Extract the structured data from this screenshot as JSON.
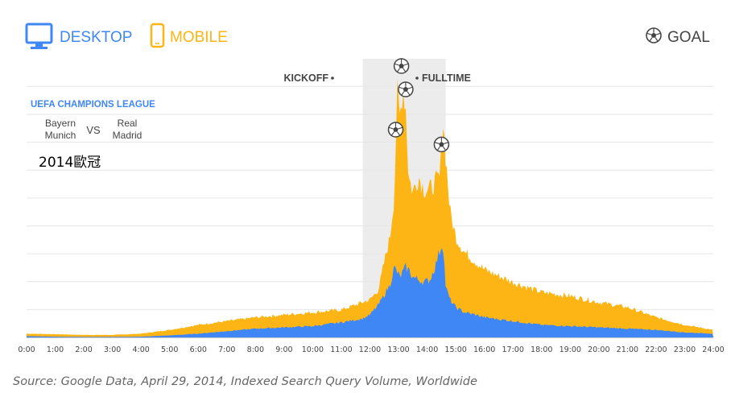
{
  "legend": {
    "desktop_label": "DESKTOP",
    "mobile_label": "MOBILE",
    "goal_label": "GOAL",
    "desktop_icon": "monitor-icon",
    "mobile_icon": "phone-icon",
    "goal_icon": "soccer-ball-icon"
  },
  "colors": {
    "desktop": "#3f87f5",
    "mobile": "#fdb515",
    "match_band": "#ececec",
    "grid": "#e6e6e6",
    "league": "#3f87f5"
  },
  "annotations": {
    "kickoff": "KICKOFF",
    "fulltime": "FULLTIME",
    "league": "UEFA CHAMPIONS LEAGUE",
    "team_home_line1": "Bayern",
    "team_home_line2": "Munich",
    "vs": "VS",
    "team_away_line1": "Real",
    "team_away_line2": "Madrid",
    "overlay_text": "2014歐冠"
  },
  "source": "Source: Google Data, April 29, 2014, Indexed Search Query Volume, Worldwide",
  "chart_data": {
    "type": "area",
    "x_ticks": [
      "0:00",
      "1:00",
      "2:00",
      "3:00",
      "4:00",
      "5:00",
      "6:00",
      "7:00",
      "8:00",
      "9:00",
      "10:00",
      "11:00",
      "12:00",
      "13:00",
      "14:00",
      "15:00",
      "16:00",
      "17:00",
      "18:00",
      "19:00",
      "20:00",
      "21:00",
      "22:00",
      "23:00",
      "24:00"
    ],
    "xlim": [
      0,
      24
    ],
    "ylim": [
      0,
      100
    ],
    "grid": true,
    "match_window": [
      11.75,
      14.65
    ],
    "goal_times": [
      12.9,
      13.1,
      13.25,
      14.5
    ],
    "series": [
      {
        "name": "MOBILE",
        "x": [
          0,
          1,
          2,
          3,
          4,
          5,
          6,
          7,
          8,
          9,
          10,
          11,
          11.5,
          11.75,
          12,
          12.3,
          12.5,
          12.7,
          12.85,
          12.95,
          13.05,
          13.15,
          13.25,
          13.35,
          13.5,
          13.7,
          13.9,
          14.1,
          14.3,
          14.45,
          14.55,
          14.65,
          14.8,
          15,
          15.3,
          15.7,
          16,
          17,
          18,
          19,
          20,
          21,
          22,
          23,
          24
        ],
        "values": [
          1.5,
          1.3,
          1,
          1,
          1.5,
          3,
          5,
          6.5,
          8,
          9,
          10,
          11,
          13,
          14,
          15,
          19,
          30,
          40,
          56,
          97,
          87,
          100,
          92,
          64,
          58,
          64,
          59,
          59,
          62,
          64,
          87,
          72,
          50,
          40,
          34,
          30,
          27,
          22,
          18,
          16.5,
          14,
          12,
          8,
          5,
          3
        ]
      },
      {
        "name": "DESKTOP",
        "x": [
          0,
          1,
          2,
          3,
          4,
          5,
          6,
          7,
          8,
          9,
          10,
          11,
          11.5,
          11.75,
          12,
          12.3,
          12.5,
          12.7,
          12.85,
          12.95,
          13.05,
          13.15,
          13.25,
          13.35,
          13.5,
          13.7,
          13.9,
          14.1,
          14.3,
          14.45,
          14.55,
          14.65,
          14.8,
          15,
          15.3,
          15.7,
          16,
          17,
          18,
          19,
          20,
          21,
          22,
          23,
          24
        ],
        "values": [
          0.5,
          0.3,
          0.2,
          0.2,
          0.3,
          0.8,
          1.5,
          2.5,
          3.5,
          4,
          4.5,
          6,
          7,
          7.5,
          9,
          13,
          17,
          21,
          28,
          26,
          24,
          26,
          28,
          27,
          24,
          23,
          22,
          23,
          29,
          35,
          38,
          20,
          15,
          12,
          10,
          9,
          8,
          6.5,
          5,
          4.5,
          4,
          3.5,
          3,
          2,
          1.5
        ]
      }
    ]
  }
}
